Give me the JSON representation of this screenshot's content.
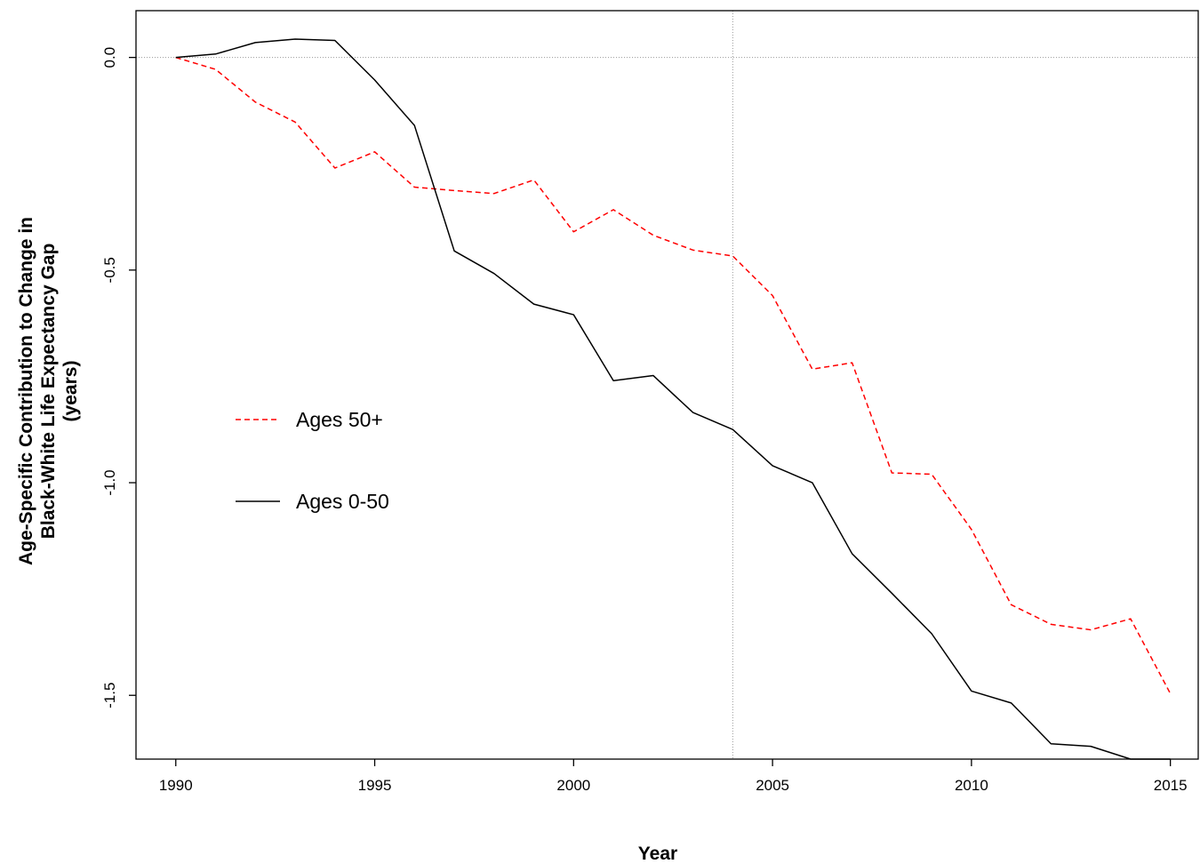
{
  "chart_data": {
    "type": "line",
    "title": "",
    "xlabel": "Year",
    "ylabel_lines": [
      "Age-Specific Contribution to Change in",
      "Black-White Life Expectancy Gap",
      "(years)"
    ],
    "xlim": [
      1989,
      2015.7
    ],
    "ylim": [
      -1.65,
      0.11
    ],
    "x_ticks": [
      1990,
      1995,
      2000,
      2005,
      2010,
      2015
    ],
    "y_ticks": [
      0.0,
      -0.5,
      -1.0,
      -1.5
    ],
    "y_tick_labels": [
      "0.0",
      "-0.5",
      "-1.0",
      "-1.5"
    ],
    "reference_lines": {
      "h": 0,
      "v": 2004
    },
    "legend_position": "left-middle",
    "x": [
      1990,
      1991,
      1992,
      1993,
      1994,
      1995,
      1996,
      1997,
      1998,
      1999,
      2000,
      2001,
      2002,
      2003,
      2004,
      2005,
      2006,
      2007,
      2008,
      2009,
      2010,
      2011,
      2012,
      2013,
      2014,
      2015
    ],
    "series": [
      {
        "name": "Ages 50+",
        "color": "#ff0000",
        "dash": "dashed",
        "values": [
          0.0,
          -0.028,
          -0.105,
          -0.152,
          -0.26,
          -0.222,
          -0.305,
          -0.313,
          -0.32,
          -0.288,
          -0.41,
          -0.358,
          -0.418,
          -0.453,
          -0.467,
          -0.56,
          -0.733,
          -0.718,
          -0.977,
          -0.98,
          -1.11,
          -1.287,
          -1.333,
          -1.346,
          -1.32,
          -1.496
        ]
      },
      {
        "name": "Ages 0-50",
        "color": "#000000",
        "dash": "solid",
        "values": [
          0.0,
          0.008,
          0.035,
          0.043,
          0.04,
          -0.053,
          -0.16,
          -0.455,
          -0.508,
          -0.58,
          -0.605,
          -0.76,
          -0.748,
          -0.835,
          -0.875,
          -0.96,
          -1.0,
          -1.167,
          -1.26,
          -1.355,
          -1.49,
          -1.518,
          -1.614,
          -1.62,
          -1.65,
          -1.65
        ]
      }
    ]
  }
}
